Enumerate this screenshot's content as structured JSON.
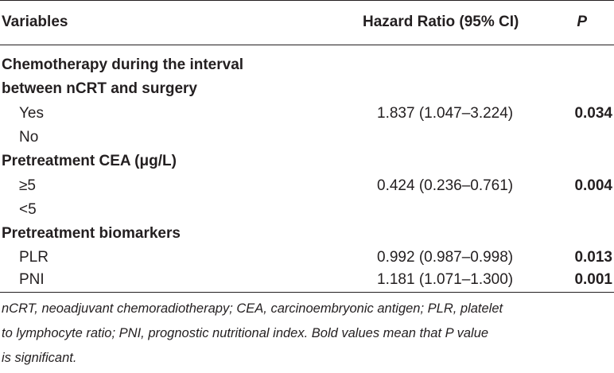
{
  "table": {
    "headers": {
      "variables": "Variables",
      "hazard_ratio": "Hazard Ratio (95% CI)",
      "p": "P"
    },
    "groups": [
      {
        "title_line1": "Chemotherapy during the interval",
        "title_line2": "between nCRT and surgery",
        "rows": [
          {
            "label": "Yes",
            "hr": "1.837 (1.047–3.224)",
            "p": "0.034"
          },
          {
            "label": "No",
            "hr": "",
            "p": ""
          }
        ]
      },
      {
        "title": "Pretreatment CEA (μg/L)",
        "rows": [
          {
            "label": "≥5",
            "hr": "0.424 (0.236–0.761)",
            "p": "0.004"
          },
          {
            "label": "<5",
            "hr": "",
            "p": ""
          }
        ]
      },
      {
        "title": "Pretreatment biomarkers",
        "rows": [
          {
            "label": "PLR",
            "hr": "0.992 (0.987–0.998)",
            "p": "0.013"
          },
          {
            "label": "PNI",
            "hr": "1.181 (1.071–1.300)",
            "p": "0.001"
          }
        ]
      }
    ]
  },
  "footnote": {
    "line1": "nCRT, neoadjuvant chemoradiotherapy; CEA, carcinoembryonic antigen; PLR, platelet",
    "line2": "to lymphocyte ratio; PNI, prognostic nutritional index. Bold values mean that P value",
    "line3": "is significant."
  }
}
